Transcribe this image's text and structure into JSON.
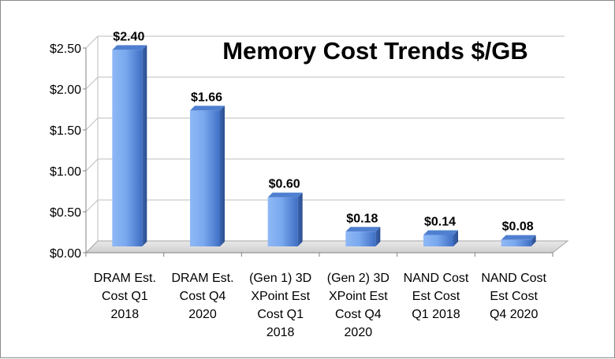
{
  "chart_data": {
    "type": "bar",
    "title": "Memory Cost Trends $/GB",
    "xlabel": "",
    "ylabel": "",
    "ylim": [
      0,
      2.5
    ],
    "y_ticks": [
      "$0.00",
      "$0.50",
      "$1.00",
      "$1.50",
      "$2.00",
      "$2.50"
    ],
    "y_tick_values": [
      0,
      0.5,
      1.0,
      1.5,
      2.0,
      2.5
    ],
    "categories": [
      "DRAM Est. Cost Q1 2018",
      "DRAM Est. Cost Q4 2020",
      "(Gen 1) 3D XPoint Est Cost Q1 2018",
      "(Gen 2) 3D XPoint Est Cost Q4 2020",
      "NAND Cost Est Cost Q1 2018",
      "NAND Cost Est Cost Q4 2020"
    ],
    "category_lines": [
      [
        "DRAM Est.",
        "Cost Q1",
        "2018"
      ],
      [
        "DRAM Est.",
        "Cost Q4",
        "2020"
      ],
      [
        "(Gen 1) 3D",
        "XPoint Est",
        "Cost Q1",
        "2018"
      ],
      [
        "(Gen 2) 3D",
        "XPoint Est",
        "Cost Q4",
        "2020"
      ],
      [
        "NAND Cost",
        "Est Cost",
        "Q1 2018"
      ],
      [
        "NAND Cost",
        "Est Cost",
        "Q4 2020"
      ]
    ],
    "values": [
      2.4,
      1.66,
      0.6,
      0.18,
      0.14,
      0.08
    ],
    "data_labels": [
      "$2.40",
      "$1.66",
      "$0.60",
      "$0.18",
      "$0.14",
      "$0.08"
    ],
    "grid": true,
    "legend": "none",
    "bar_color": "#6f9fe6"
  }
}
